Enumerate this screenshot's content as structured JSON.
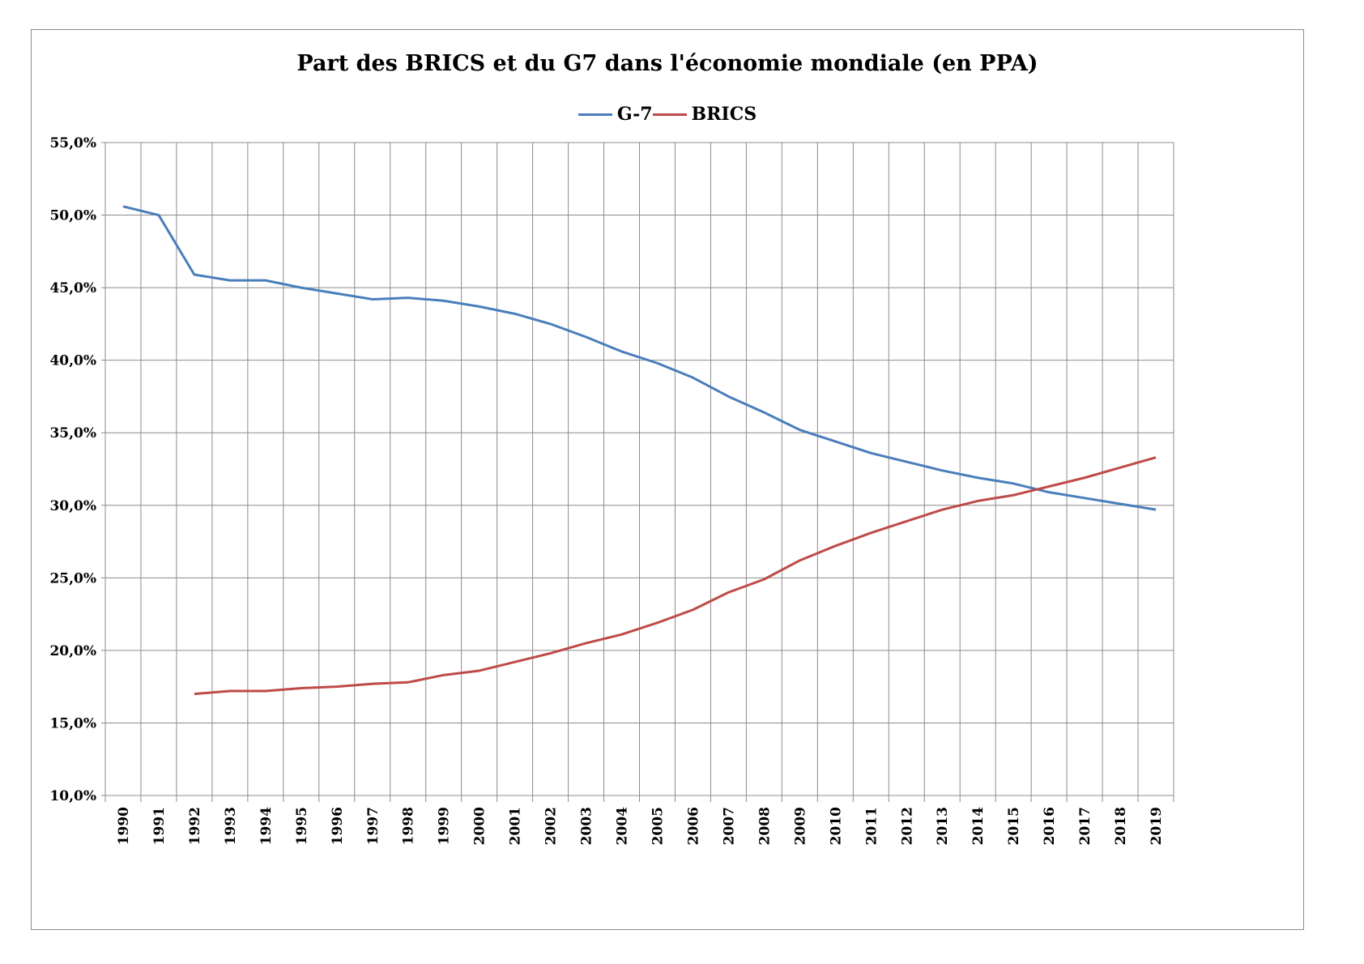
{
  "chart_data": {
    "type": "line",
    "title": "Part des BRICS et du G7 dans l'économie mondiale (en PPA)",
    "xlabel": "",
    "ylabel": "",
    "ylim": [
      10,
      55
    ],
    "y_ticks": [
      "10,0%",
      "15,0%",
      "20,0%",
      "25,0%",
      "30,0%",
      "35,0%",
      "40,0%",
      "45,0%",
      "50,0%",
      "55,0%"
    ],
    "grid": true,
    "legend_position": "top",
    "categories": [
      "1990",
      "1991",
      "1992",
      "1993",
      "1994",
      "1995",
      "1996",
      "1997",
      "1998",
      "1999",
      "2000",
      "2001",
      "2002",
      "2003",
      "2004",
      "2005",
      "2006",
      "2007",
      "2008",
      "2009",
      "2010",
      "2011",
      "2012",
      "2013",
      "2014",
      "2015",
      "2016",
      "2017",
      "2018",
      "2019"
    ],
    "series": [
      {
        "name": "G-7",
        "color": "#4a7ebb",
        "values": [
          50.6,
          50.0,
          45.9,
          45.5,
          45.5,
          45.0,
          44.6,
          44.2,
          44.3,
          44.1,
          43.7,
          43.2,
          42.5,
          41.6,
          40.6,
          39.8,
          38.8,
          37.5,
          36.4,
          35.2,
          34.4,
          33.6,
          33.0,
          32.4,
          31.9,
          31.5,
          30.9,
          30.5,
          30.1,
          29.7
        ]
      },
      {
        "name": "BRICS",
        "color": "#be4b48",
        "values": [
          null,
          null,
          17.0,
          17.2,
          17.2,
          17.4,
          17.5,
          17.7,
          17.8,
          18.3,
          18.6,
          19.2,
          19.8,
          20.5,
          21.1,
          21.9,
          22.8,
          24.0,
          24.9,
          26.2,
          27.2,
          28.1,
          28.9,
          29.7,
          30.3,
          30.7,
          31.3,
          31.9,
          32.6,
          33.3
        ]
      }
    ]
  }
}
